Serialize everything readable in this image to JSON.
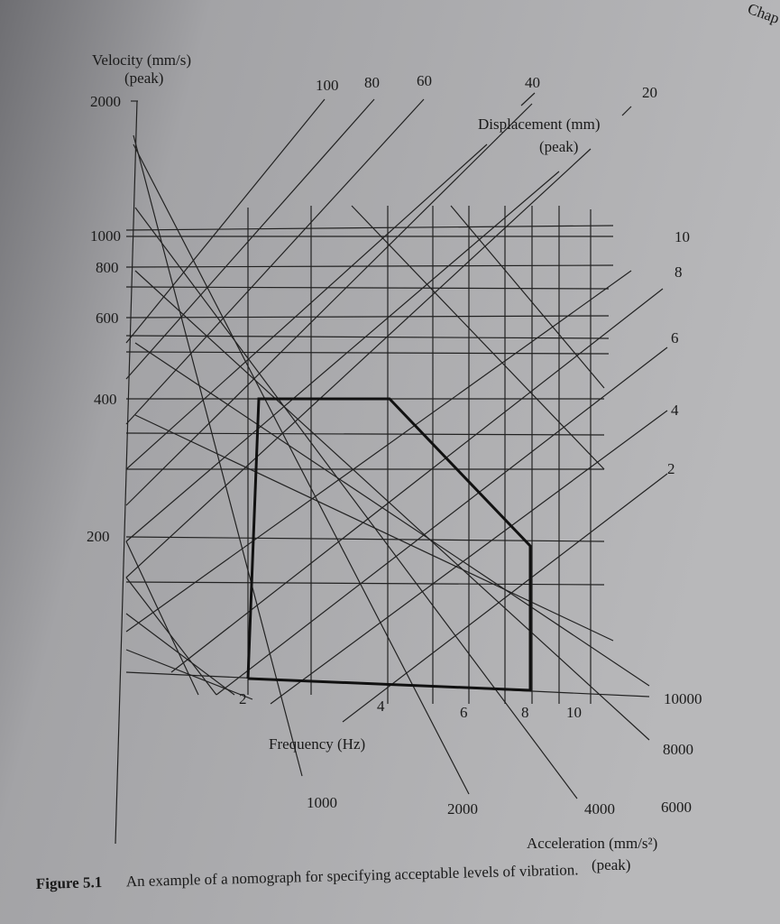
{
  "header": {
    "corner": "Chap"
  },
  "velocity": {
    "title": "Velocity (mm/s)",
    "subtitle": "(peak)",
    "ticks": [
      "2000",
      "1000",
      "800",
      "600",
      "400",
      "200"
    ]
  },
  "displacement": {
    "title": "Displacement (mm)",
    "subtitle": "(peak)",
    "labels": [
      "100",
      "80",
      "60",
      "40",
      "20",
      "10",
      "8",
      "6",
      "4",
      "2"
    ]
  },
  "frequency": {
    "title": "Frequency (Hz)",
    "labels": [
      "2",
      "4",
      "6",
      "8",
      "10"
    ]
  },
  "acceleration": {
    "title": "Acceleration (mm/s²)",
    "subtitle": "(peak)",
    "labels": [
      "1000",
      "2000",
      "4000",
      "6000",
      "8000",
      "10000"
    ]
  },
  "caption": {
    "number": "Figure 5.1",
    "text": "An example of a nomograph for specifying acceptable levels of vibration."
  }
}
